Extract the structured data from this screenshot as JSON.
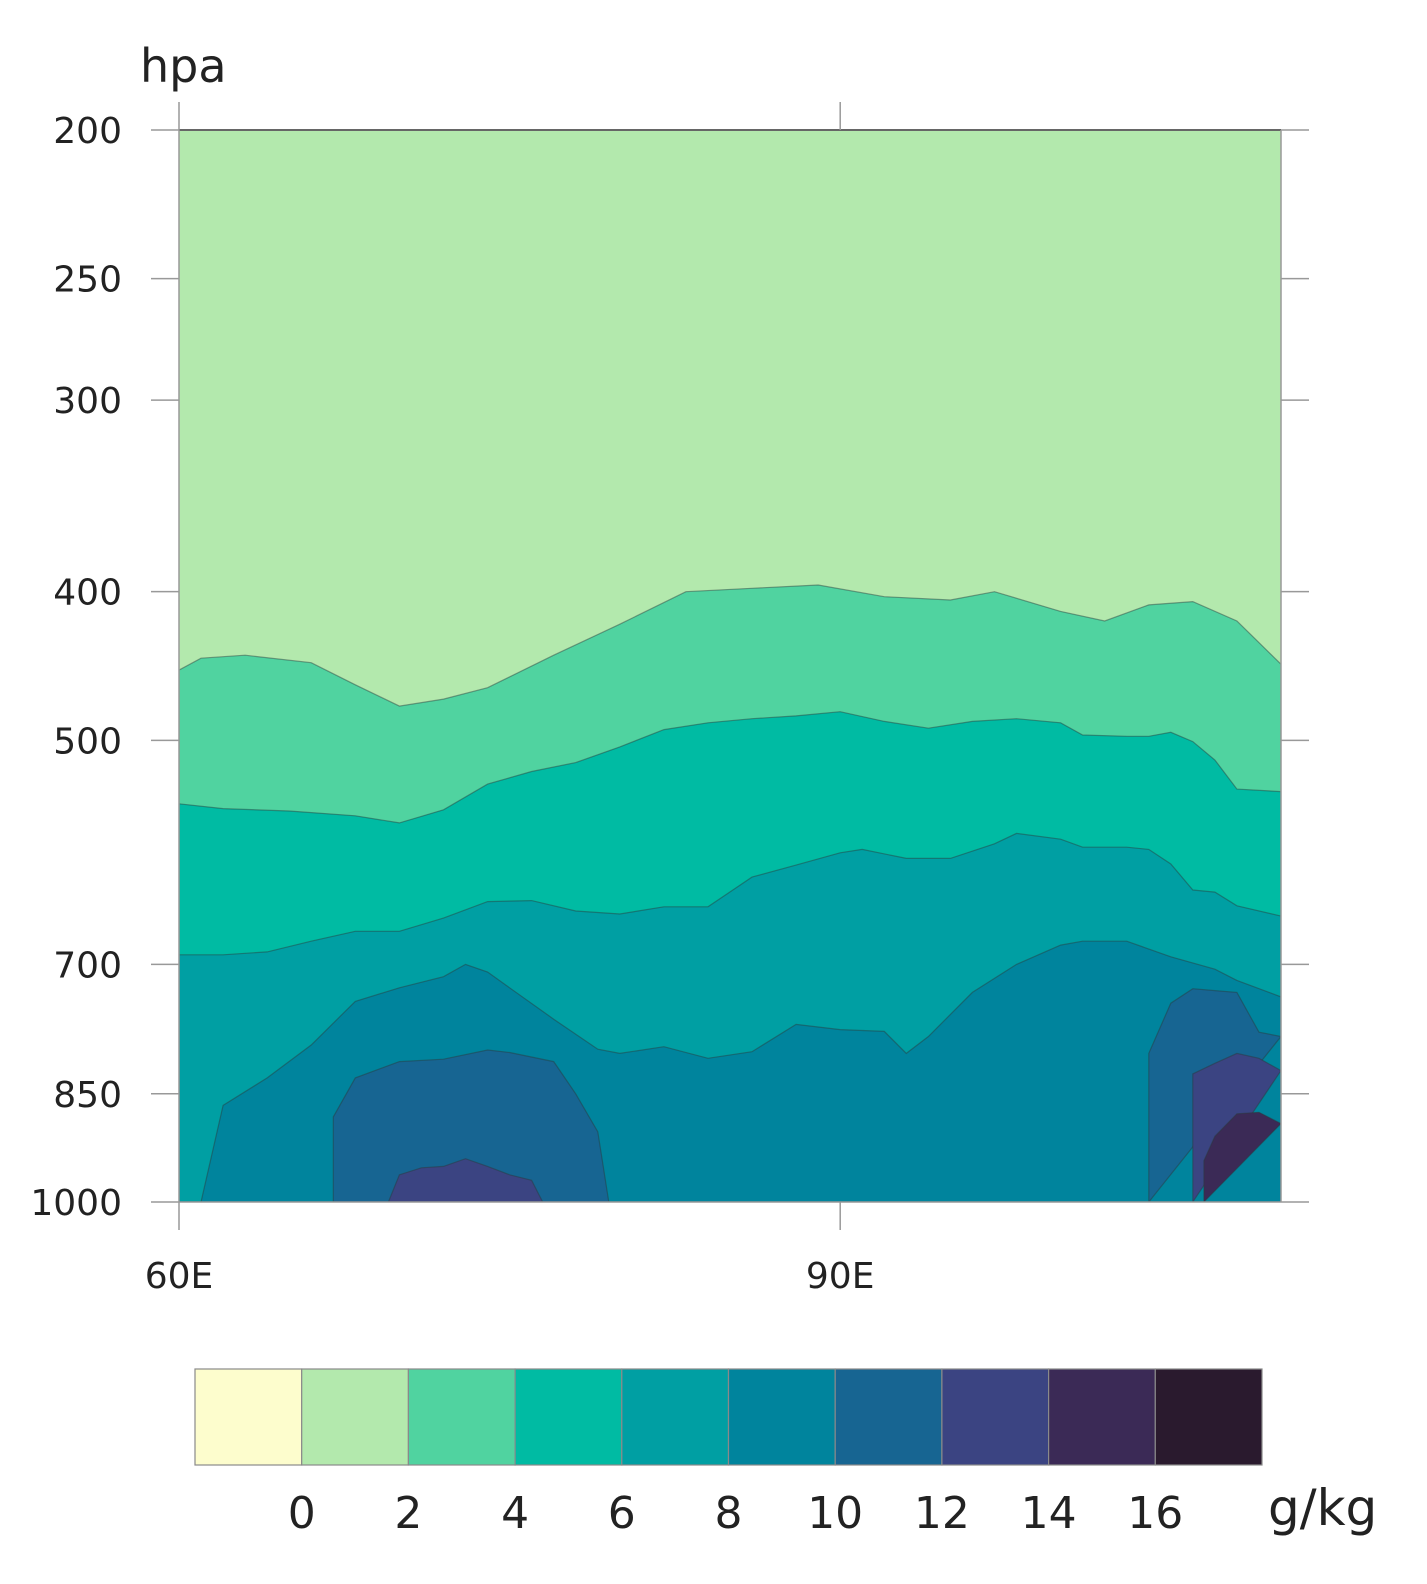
{
  "chart_data": {
    "type": "filled-contour",
    "title": "",
    "ylabel": "hpa",
    "xlabel": "",
    "y_scale": "pressure (log)",
    "ylim": [
      1000,
      200
    ],
    "xlim": [
      60,
      110
    ],
    "x_ticks": [
      {
        "value": 60,
        "label": "60E"
      },
      {
        "value": 90,
        "label": "90E"
      }
    ],
    "y_ticks": [
      {
        "value": 200,
        "label": "200"
      },
      {
        "value": 250,
        "label": "250"
      },
      {
        "value": 300,
        "label": "300"
      },
      {
        "value": 400,
        "label": "400"
      },
      {
        "value": 500,
        "label": "500"
      },
      {
        "value": 700,
        "label": "700"
      },
      {
        "value": 850,
        "label": "850"
      },
      {
        "value": 1000,
        "label": "1000"
      }
    ],
    "colorbar": {
      "unit": "g/kg",
      "levels": [
        0,
        2,
        4,
        6,
        8,
        10,
        12,
        14,
        16
      ],
      "level_labels": [
        "0",
        "2",
        "4",
        "6",
        "8",
        "10",
        "12",
        "14",
        "16"
      ],
      "colors": [
        "#fdfdcd",
        "#b3e9ad",
        "#50d3a0",
        "#00bba3",
        "#009fa3",
        "#00849d",
        "#176592",
        "#3b4482",
        "#3b2a56",
        "#2a1a2e"
      ]
    },
    "contours": [
      {
        "level": 2,
        "points": [
          [
            60,
            450
          ],
          [
            61,
            442
          ],
          [
            63,
            440
          ],
          [
            66,
            445
          ],
          [
            68,
            460
          ],
          [
            70,
            475
          ],
          [
            72,
            470
          ],
          [
            74,
            462
          ],
          [
            77,
            440
          ],
          [
            80,
            420
          ],
          [
            83,
            400
          ],
          [
            86,
            398
          ],
          [
            89,
            396
          ],
          [
            92,
            403
          ],
          [
            95,
            405
          ],
          [
            97,
            400
          ],
          [
            100,
            412
          ],
          [
            102,
            418
          ],
          [
            104,
            408
          ],
          [
            106,
            406
          ],
          [
            108,
            418
          ],
          [
            110,
            446
          ]
        ]
      },
      {
        "level": 4,
        "points": [
          [
            60,
            550
          ],
          [
            62,
            554
          ],
          [
            65,
            556
          ],
          [
            68,
            560
          ],
          [
            70,
            566
          ],
          [
            72,
            555
          ],
          [
            74,
            534
          ],
          [
            76,
            524
          ],
          [
            78,
            517
          ],
          [
            80,
            505
          ],
          [
            82,
            492
          ],
          [
            84,
            487
          ],
          [
            86,
            484
          ],
          [
            88,
            482
          ],
          [
            90,
            479
          ],
          [
            92,
            486
          ],
          [
            94,
            491
          ],
          [
            96,
            486
          ],
          [
            98,
            484
          ],
          [
            100,
            487
          ],
          [
            101,
            496
          ],
          [
            103,
            497
          ],
          [
            104,
            497
          ],
          [
            105,
            494
          ],
          [
            106,
            501
          ],
          [
            107,
            515
          ],
          [
            108,
            538
          ],
          [
            110,
            540
          ]
        ]
      },
      {
        "level": 6,
        "points": [
          [
            60,
            690
          ],
          [
            62,
            690
          ],
          [
            64,
            687
          ],
          [
            66,
            676
          ],
          [
            68,
            666
          ],
          [
            70,
            666
          ],
          [
            72,
            653
          ],
          [
            74,
            637
          ],
          [
            76,
            636
          ],
          [
            78,
            646
          ],
          [
            80,
            649
          ],
          [
            82,
            642
          ],
          [
            84,
            642
          ],
          [
            86,
            614
          ],
          [
            88,
            603
          ],
          [
            90,
            592
          ],
          [
            91,
            589
          ],
          [
            93,
            597
          ],
          [
            95,
            597
          ],
          [
            97,
            584
          ],
          [
            98,
            575
          ],
          [
            100,
            580
          ],
          [
            101,
            587
          ],
          [
            103,
            587
          ],
          [
            104,
            589
          ],
          [
            105,
            602
          ],
          [
            106,
            626
          ],
          [
            107,
            628
          ],
          [
            108,
            641
          ],
          [
            110,
            651
          ]
        ]
      },
      {
        "level": 8,
        "points": [
          [
            60,
            1000
          ],
          [
            61,
            1000
          ],
          [
            62,
            865
          ],
          [
            64,
            830
          ],
          [
            66,
            790
          ],
          [
            68,
            740
          ],
          [
            70,
            725
          ],
          [
            72,
            713
          ],
          [
            73,
            700
          ],
          [
            74,
            708
          ],
          [
            75,
            725
          ],
          [
            77,
            760
          ],
          [
            79,
            795
          ],
          [
            80,
            800
          ],
          [
            82,
            792
          ],
          [
            84,
            806
          ],
          [
            86,
            798
          ],
          [
            88,
            766
          ],
          [
            90,
            772
          ],
          [
            92,
            774
          ],
          [
            93,
            800
          ],
          [
            94,
            780
          ],
          [
            96,
            730
          ],
          [
            98,
            700
          ],
          [
            100,
            680
          ],
          [
            101,
            676
          ],
          [
            103,
            676
          ],
          [
            105,
            692
          ],
          [
            107,
            705
          ],
          [
            108,
            717
          ],
          [
            110,
            735
          ]
        ]
      },
      {
        "level": 10,
        "points": [
          [
            67,
            1000
          ],
          [
            67,
            880
          ],
          [
            68,
            830
          ],
          [
            70,
            810
          ],
          [
            72,
            807
          ],
          [
            74,
            796
          ],
          [
            75,
            799
          ],
          [
            77,
            810
          ],
          [
            78,
            850
          ],
          [
            79,
            900
          ],
          [
            79.5,
            1000
          ]
        ]
      },
      {
        "level": 10,
        "points": [
          [
            110,
            780
          ],
          [
            109,
            775
          ],
          [
            108,
            730
          ],
          [
            107,
            728
          ],
          [
            106,
            726
          ],
          [
            105,
            742
          ],
          [
            104,
            800
          ],
          [
            104,
            1000
          ]
        ]
      },
      {
        "level": 12,
        "points": [
          [
            69.5,
            1000
          ],
          [
            70,
            960
          ],
          [
            71,
            950
          ],
          [
            72,
            948
          ],
          [
            73,
            937
          ],
          [
            74,
            948
          ],
          [
            75,
            960
          ],
          [
            76,
            968
          ],
          [
            76.5,
            1000
          ]
        ]
      },
      {
        "level": 12,
        "points": [
          [
            110,
            821
          ],
          [
            109,
            806
          ],
          [
            108,
            800
          ],
          [
            107,
            812
          ],
          [
            106,
            825
          ],
          [
            106,
            1000
          ]
        ]
      },
      {
        "level": 14,
        "points": [
          [
            110,
            889
          ],
          [
            109,
            874
          ],
          [
            108,
            876
          ],
          [
            107,
            906
          ],
          [
            106.5,
            940
          ],
          [
            106.5,
            1000
          ]
        ]
      }
    ]
  }
}
